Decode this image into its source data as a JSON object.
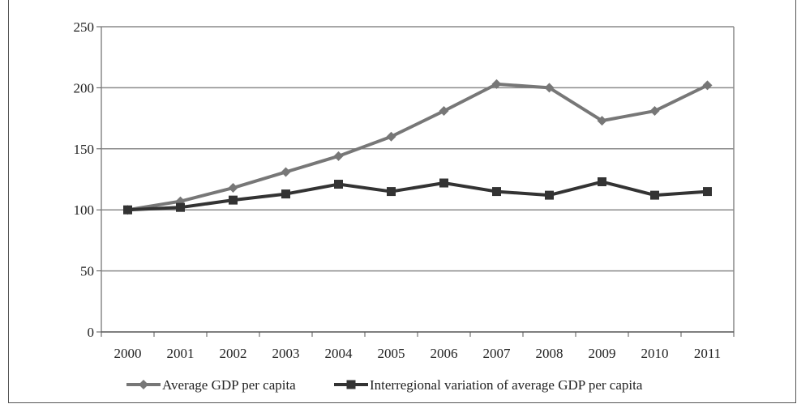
{
  "chart_data": {
    "type": "line",
    "title": "",
    "xlabel": "",
    "ylabel": "",
    "x": [
      "2000",
      "2001",
      "2002",
      "2003",
      "2004",
      "2005",
      "2006",
      "2007",
      "2008",
      "2009",
      "2010",
      "2011"
    ],
    "ylim": [
      0,
      250
    ],
    "yticks": [
      "0",
      "50",
      "100",
      "150",
      "200",
      "250"
    ],
    "grid": "horizontal",
    "legend_position": "bottom",
    "series": [
      {
        "name": "Average GDP per capita",
        "marker": "diamond",
        "color": "#777777",
        "values": [
          100,
          107,
          118,
          131,
          144,
          160,
          181,
          203,
          200,
          173,
          181,
          202
        ]
      },
      {
        "name": "Interregional variation of average GDP per capita",
        "marker": "square",
        "color": "#333333",
        "values": [
          100,
          102,
          108,
          113,
          121,
          115,
          122,
          115,
          112,
          123,
          112,
          115
        ]
      }
    ]
  }
}
